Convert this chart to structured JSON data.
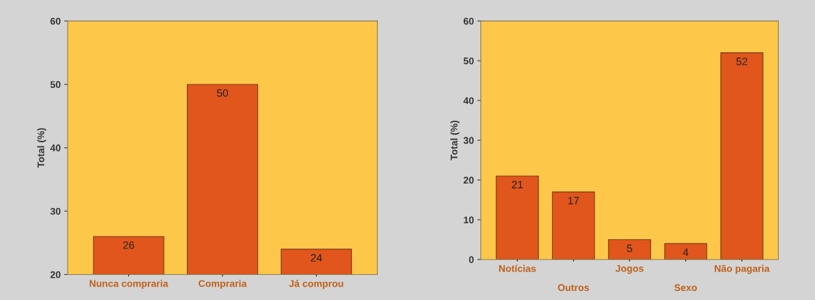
{
  "chart_data": [
    {
      "type": "bar",
      "ylabel": "Total (%)",
      "categories": [
        "Nunca compraria",
        "Compraria",
        "Já comprou"
      ],
      "values": [
        26,
        50,
        24
      ],
      "color": "#e0561c",
      "ylim": [
        20,
        60
      ],
      "yticks": [
        20,
        30,
        40,
        50,
        60
      ],
      "data_labels": true,
      "grid": false,
      "legend": false
    },
    {
      "type": "bar",
      "ylabel": "Total (%)",
      "categories": [
        "Notícias",
        "Outros",
        "Jogos",
        "Sexo",
        "Não pagaria"
      ],
      "values": [
        21,
        17,
        5,
        4,
        52
      ],
      "color": "#e0561c",
      "ylim": [
        0,
        60
      ],
      "yticks": [
        0,
        10,
        20,
        30,
        40,
        50,
        60
      ],
      "data_labels": true,
      "grid": false,
      "legend": false
    }
  ]
}
